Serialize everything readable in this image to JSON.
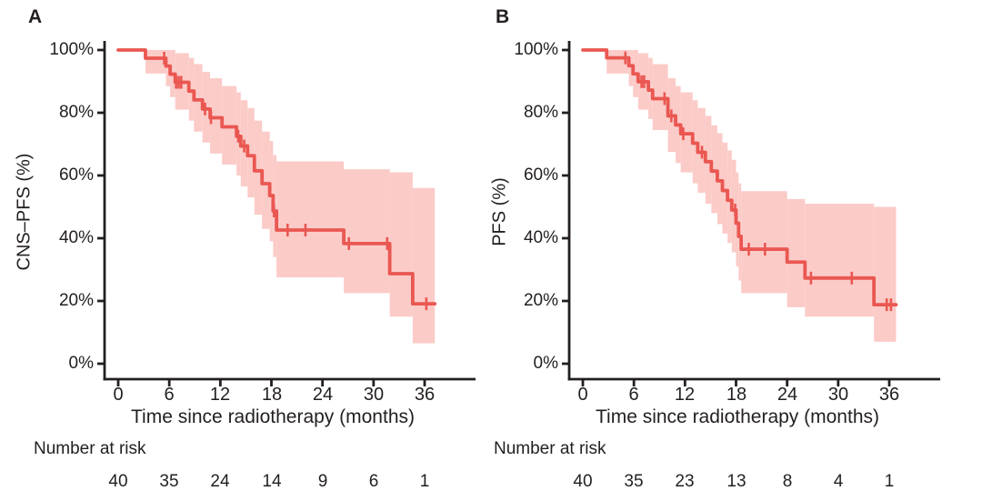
{
  "figure": {
    "panels": [
      {
        "label": "A",
        "y_axis_label": "CNS–PFS (%)",
        "x_axis_label": "Time since radiotherapy (months)",
        "y_ticks": [
          "100%",
          "80%",
          "60%",
          "40%",
          "20%",
          "0%"
        ],
        "x_ticks": [
          "0",
          "6",
          "12",
          "18",
          "24",
          "30",
          "36"
        ],
        "risk_header": "Number at risk",
        "risk_counts": [
          "40",
          "35",
          "24",
          "14",
          "9",
          "6",
          "1"
        ]
      },
      {
        "label": "B",
        "y_axis_label": "PFS (%)",
        "x_axis_label": "Time since radiotherapy (months)",
        "y_ticks": [
          "100%",
          "80%",
          "60%",
          "40%",
          "20%",
          "0%"
        ],
        "x_ticks": [
          "0",
          "6",
          "12",
          "18",
          "24",
          "30",
          "36"
        ],
        "risk_header": "Number at risk",
        "risk_counts": [
          "40",
          "35",
          "23",
          "13",
          "8",
          "4",
          "1"
        ]
      }
    ]
  },
  "colors": {
    "curve": "#ea5751",
    "band": "#fbcbc8",
    "axis": "#231f20",
    "text": "#231f20"
  },
  "chart_data": [
    {
      "type": "line",
      "subtype": "kaplan-meier-step",
      "title": "Panel A",
      "ylabel": "CNS–PFS (%)",
      "xlabel": "Time since radiotherapy (months)",
      "xlim": [
        0,
        38
      ],
      "ylim": [
        0,
        100
      ],
      "x_tick_values": [
        0,
        6,
        12,
        18,
        24,
        30,
        36
      ],
      "y_tick_values": [
        100,
        80,
        60,
        40,
        20,
        0
      ],
      "grid": false,
      "legend": "none",
      "end_time": 37.2,
      "steps": [
        {
          "t": 0,
          "s": 100,
          "lo": 100,
          "hi": 100
        },
        {
          "t": 3.2,
          "s": 97.4,
          "lo": 92.5,
          "hi": 100
        },
        {
          "t": 5.6,
          "s": 94.9,
          "lo": 88.5,
          "hi": 100
        },
        {
          "t": 6.1,
          "s": 92.3,
          "lo": 85,
          "hi": 100
        },
        {
          "t": 6.7,
          "s": 89.7,
          "lo": 81,
          "hi": 99
        },
        {
          "t": 8.3,
          "s": 86.9,
          "lo": 77.5,
          "hi": 97.5
        },
        {
          "t": 8.9,
          "s": 84.1,
          "lo": 74,
          "hi": 95.5
        },
        {
          "t": 9.9,
          "s": 81.2,
          "lo": 70.5,
          "hi": 93
        },
        {
          "t": 10.8,
          "s": 78.4,
          "lo": 67,
          "hi": 91
        },
        {
          "t": 12.2,
          "s": 75.5,
          "lo": 63.5,
          "hi": 88.5
        },
        {
          "t": 13.9,
          "s": 72.5,
          "lo": 60,
          "hi": 86.5
        },
        {
          "t": 14.4,
          "s": 69.4,
          "lo": 56.5,
          "hi": 84
        },
        {
          "t": 15.2,
          "s": 66.3,
          "lo": 53,
          "hi": 81.5
        },
        {
          "t": 16.0,
          "s": 61.5,
          "lo": 47.5,
          "hi": 77.5
        },
        {
          "t": 16.9,
          "s": 57.4,
          "lo": 43,
          "hi": 74
        },
        {
          "t": 17.8,
          "s": 53.6,
          "lo": 39,
          "hi": 71
        },
        {
          "t": 18.2,
          "s": 48.7,
          "lo": 34,
          "hi": 66.5
        },
        {
          "t": 18.6,
          "s": 42.6,
          "lo": 27.5,
          "hi": 64.5
        },
        {
          "t": 26.5,
          "s": 38.3,
          "lo": 22.5,
          "hi": 62
        },
        {
          "t": 31.9,
          "s": 28.7,
          "lo": 15,
          "hi": 61
        },
        {
          "t": 34.6,
          "s": 19.1,
          "lo": 6.5,
          "hi": 56
        }
      ],
      "censors": [
        {
          "t": 5.4,
          "s": 97.4
        },
        {
          "t": 6.8,
          "s": 89.7
        },
        {
          "t": 7.1,
          "s": 89.7
        },
        {
          "t": 7.4,
          "s": 89.7
        },
        {
          "t": 10.2,
          "s": 81.2
        },
        {
          "t": 10.9,
          "s": 78.4
        },
        {
          "t": 14.1,
          "s": 72.5
        },
        {
          "t": 14.8,
          "s": 69.4
        },
        {
          "t": 18.3,
          "s": 48.7
        },
        {
          "t": 19.9,
          "s": 42.6
        },
        {
          "t": 22.0,
          "s": 42.6
        },
        {
          "t": 27.1,
          "s": 38.3
        },
        {
          "t": 31.6,
          "s": 38.3
        },
        {
          "t": 36.2,
          "s": 19.1
        }
      ],
      "number_at_risk": {
        "times": [
          0,
          6,
          12,
          18,
          24,
          30,
          36
        ],
        "counts": [
          40,
          35,
          24,
          14,
          9,
          6,
          1
        ]
      }
    },
    {
      "type": "line",
      "subtype": "kaplan-meier-step",
      "title": "Panel B",
      "ylabel": "PFS (%)",
      "xlabel": "Time since radiotherapy (months)",
      "xlim": [
        0,
        38
      ],
      "ylim": [
        0,
        100
      ],
      "x_tick_values": [
        0,
        6,
        12,
        18,
        24,
        30,
        36
      ],
      "y_tick_values": [
        100,
        80,
        60,
        40,
        20,
        0
      ],
      "grid": false,
      "legend": "none",
      "end_time": 36.8,
      "steps": [
        {
          "t": 0,
          "s": 100,
          "lo": 100,
          "hi": 100
        },
        {
          "t": 2.8,
          "s": 97.5,
          "lo": 92.5,
          "hi": 100
        },
        {
          "t": 5.4,
          "s": 95.0,
          "lo": 88.5,
          "hi": 100
        },
        {
          "t": 5.9,
          "s": 92.4,
          "lo": 85,
          "hi": 100
        },
        {
          "t": 6.5,
          "s": 89.9,
          "lo": 81,
          "hi": 99
        },
        {
          "t": 7.7,
          "s": 87.2,
          "lo": 78,
          "hi": 97.5
        },
        {
          "t": 8.2,
          "s": 84.5,
          "lo": 74.5,
          "hi": 95.5
        },
        {
          "t": 10.0,
          "s": 79.0,
          "lo": 67.5,
          "hi": 91
        },
        {
          "t": 10.9,
          "s": 76.1,
          "lo": 64,
          "hi": 88.5
        },
        {
          "t": 11.5,
          "s": 73.3,
          "lo": 61,
          "hi": 86.5
        },
        {
          "t": 12.9,
          "s": 70.3,
          "lo": 57.5,
          "hi": 84
        },
        {
          "t": 13.5,
          "s": 67.4,
          "lo": 54.5,
          "hi": 81.5
        },
        {
          "t": 14.4,
          "s": 64.4,
          "lo": 51,
          "hi": 79
        },
        {
          "t": 15.1,
          "s": 61.4,
          "lo": 48,
          "hi": 76
        },
        {
          "t": 15.8,
          "s": 58.3,
          "lo": 44.5,
          "hi": 73.5
        },
        {
          "t": 16.4,
          "s": 55.2,
          "lo": 41.5,
          "hi": 70.5
        },
        {
          "t": 17.0,
          "s": 52.1,
          "lo": 38.5,
          "hi": 68
        },
        {
          "t": 17.5,
          "s": 49.0,
          "lo": 35.5,
          "hi": 65
        },
        {
          "t": 18.0,
          "s": 44.8,
          "lo": 31,
          "hi": 61
        },
        {
          "t": 18.3,
          "s": 40.6,
          "lo": 26.5,
          "hi": 57.5
        },
        {
          "t": 18.6,
          "s": 36.5,
          "lo": 22.5,
          "hi": 55
        },
        {
          "t": 24.0,
          "s": 32.4,
          "lo": 18,
          "hi": 52.5
        },
        {
          "t": 26.1,
          "s": 27.3,
          "lo": 15,
          "hi": 51
        },
        {
          "t": 34.2,
          "s": 18.8,
          "lo": 7,
          "hi": 50
        }
      ],
      "censors": [
        {
          "t": 5.0,
          "s": 97.5
        },
        {
          "t": 6.9,
          "s": 89.9
        },
        {
          "t": 7.2,
          "s": 89.9
        },
        {
          "t": 9.6,
          "s": 84.5
        },
        {
          "t": 10.4,
          "s": 79.0
        },
        {
          "t": 11.8,
          "s": 73.3
        },
        {
          "t": 14.0,
          "s": 67.4
        },
        {
          "t": 17.9,
          "s": 49.0
        },
        {
          "t": 19.5,
          "s": 36.5
        },
        {
          "t": 21.4,
          "s": 36.5
        },
        {
          "t": 26.8,
          "s": 27.3
        },
        {
          "t": 31.6,
          "s": 27.3
        },
        {
          "t": 35.7,
          "s": 18.8
        },
        {
          "t": 36.2,
          "s": 18.8
        }
      ],
      "number_at_risk": {
        "times": [
          0,
          6,
          12,
          18,
          24,
          30,
          36
        ],
        "counts": [
          40,
          35,
          23,
          13,
          8,
          4,
          1
        ]
      }
    }
  ]
}
